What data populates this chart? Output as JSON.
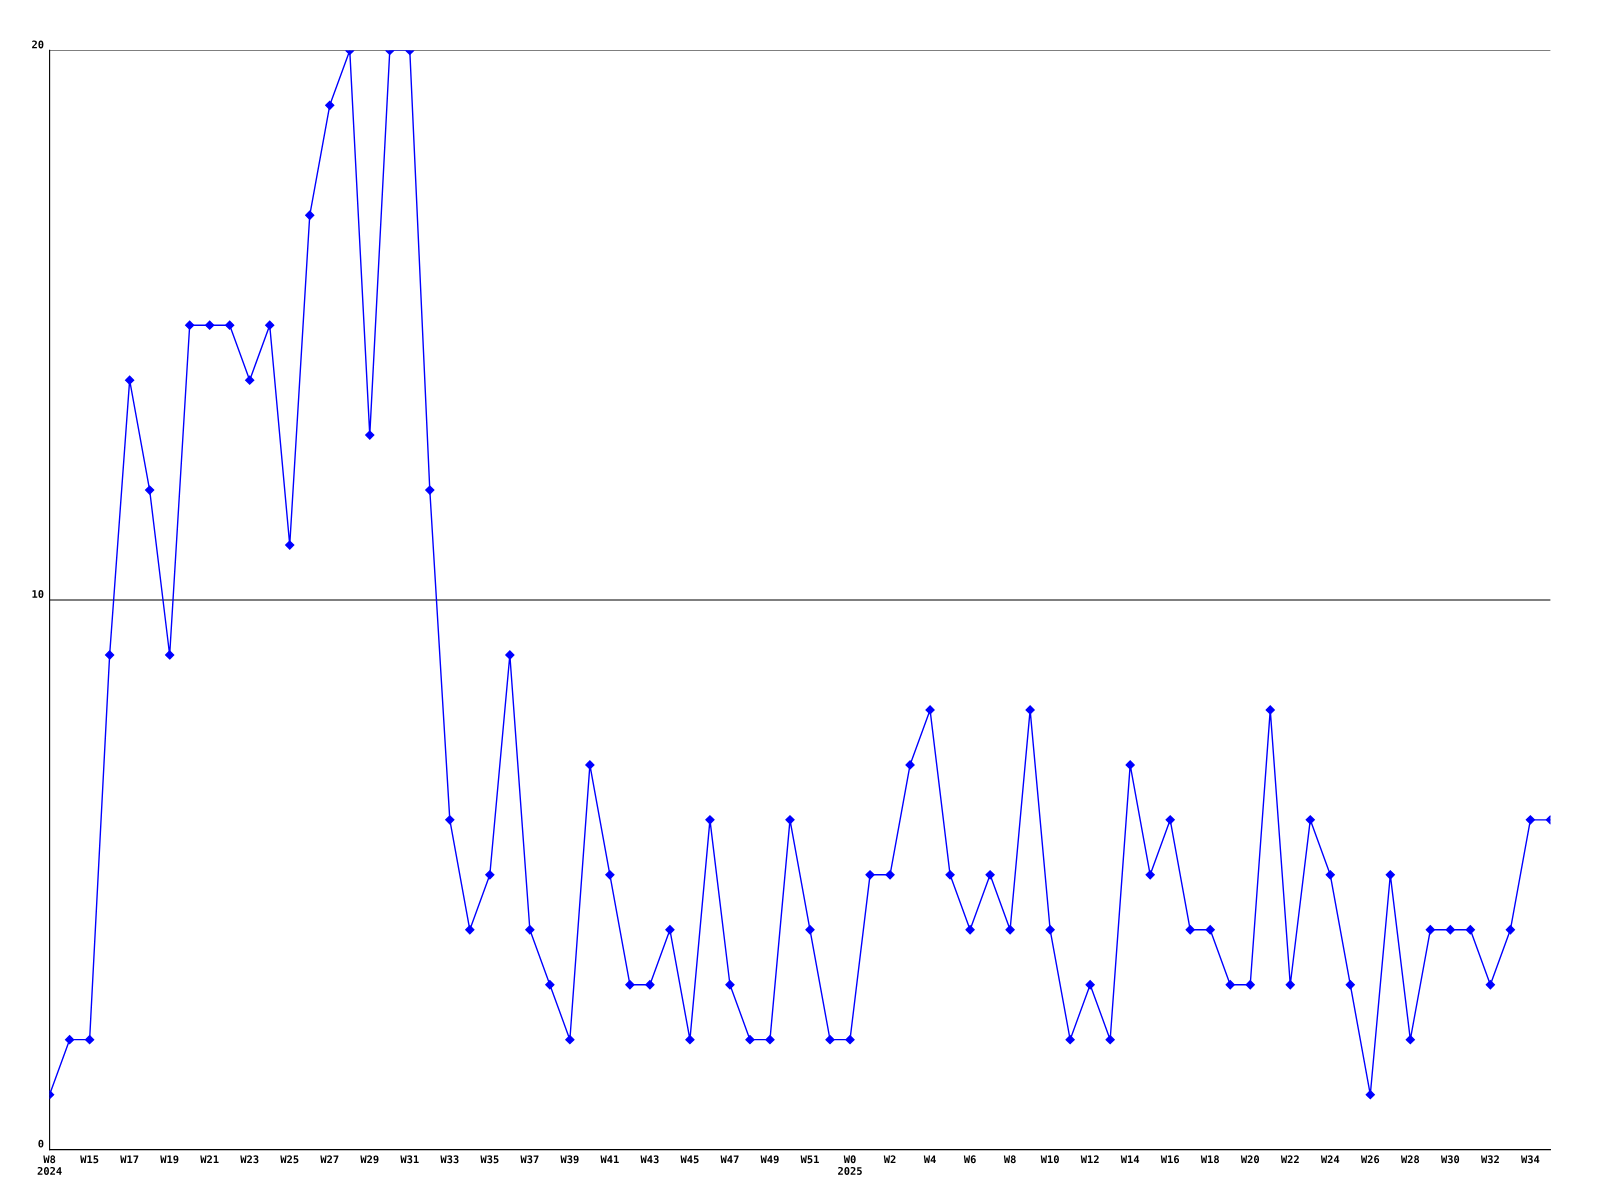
{
  "chart_data": {
    "type": "line",
    "categories": [
      "W8\n2024",
      null,
      "W15",
      null,
      "W17",
      null,
      "W19",
      null,
      "W21",
      null,
      "W23",
      null,
      "W25",
      null,
      "W27",
      null,
      "W29",
      null,
      "W31",
      null,
      "W33",
      null,
      "W35",
      null,
      "W37",
      null,
      "W39",
      null,
      "W41",
      null,
      "W43",
      null,
      "W45",
      null,
      "W47",
      null,
      "W49",
      null,
      "W51",
      null,
      "W0\n2025",
      null,
      "W2",
      null,
      "W4",
      null,
      "W6",
      null,
      "W8",
      null,
      "W10",
      null,
      "W12",
      null,
      "W14",
      null,
      "W16",
      null,
      "W18",
      null,
      "W20",
      null,
      "W22",
      null,
      "W24",
      null,
      "W26",
      null,
      "W28",
      null,
      "W30",
      null,
      "W32",
      null,
      "W34",
      null
    ],
    "series": [
      {
        "color": "#0000ff",
        "values": [
          1,
          2,
          2,
          9,
          14,
          12,
          9,
          15,
          15,
          15,
          14,
          15,
          11,
          17,
          19,
          20,
          13,
          20,
          20,
          12,
          6,
          4,
          5,
          9,
          4,
          3,
          2,
          7,
          5,
          3,
          3,
          4,
          2,
          6,
          3,
          2,
          2,
          6,
          4,
          2,
          2,
          5,
          5,
          7,
          8,
          5,
          4,
          5,
          4,
          8,
          4,
          2,
          3,
          2,
          7,
          5,
          6,
          4,
          4,
          3,
          3,
          8,
          3,
          6,
          5,
          3,
          1,
          5,
          2,
          4,
          4,
          4,
          3,
          4,
          6,
          6
        ]
      }
    ],
    "ylim": [
      0,
      20
    ],
    "yticks": [
      0,
      10,
      20
    ],
    "grid": "y",
    "marker": "diamond",
    "line_style": "solid"
  }
}
